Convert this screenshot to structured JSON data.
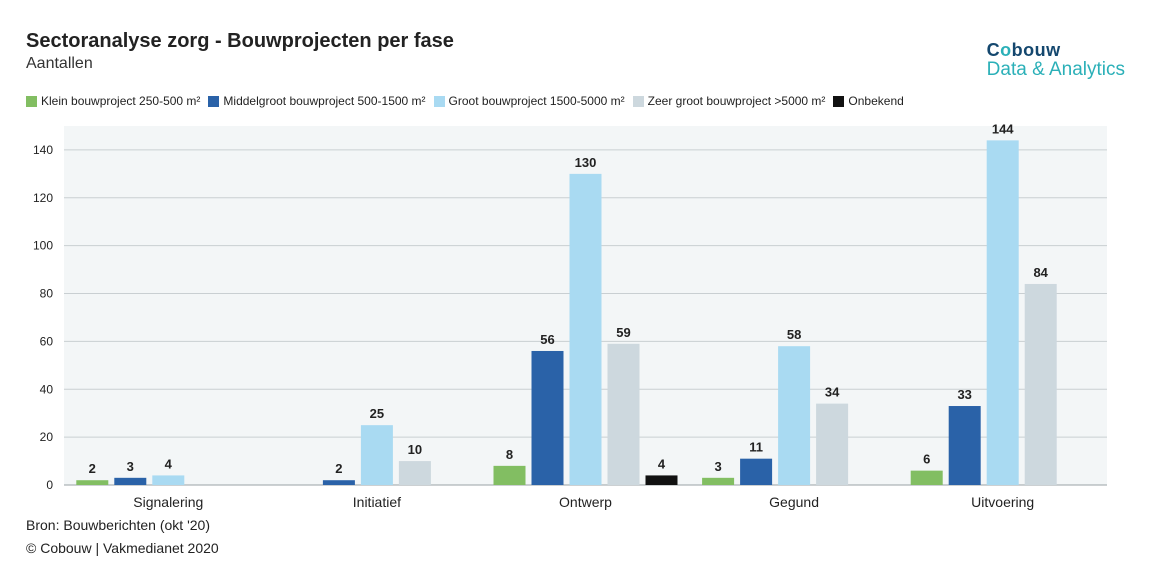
{
  "header": {
    "title": "Sectoranalyse zorg - Bouwprojecten per fase",
    "subtitle": "Aantallen"
  },
  "brand": {
    "name_prefix": "C",
    "name_o": "o",
    "name_suffix": "bouw",
    "tagline": "Data & Analytics"
  },
  "footer": {
    "source": "Bron: Bouwberichten (okt '20)",
    "copyright": "© Cobouw | Vakmedianet 2020"
  },
  "chart_data": {
    "type": "bar",
    "title": "Sectoranalyse zorg - Bouwprojecten per fase",
    "subtitle": "Aantallen",
    "categories": [
      "Signalering",
      "Initiatief",
      "Ontwerp",
      "Gegund",
      "Uitvoering"
    ],
    "series": [
      {
        "name": "Klein bouwproject 250-500 m²",
        "color": "#82be62",
        "values": [
          2,
          null,
          8,
          3,
          6
        ]
      },
      {
        "name": "Middelgroot bouwproject 500-1500 m²",
        "color": "#2a62a8",
        "values": [
          3,
          2,
          56,
          11,
          33
        ]
      },
      {
        "name": "Groot bouwproject 1500-5000 m²",
        "color": "#a9daf2",
        "values": [
          4,
          25,
          130,
          58,
          144
        ]
      },
      {
        "name": "Zeer groot bouwproject >5000 m²",
        "color": "#cdd8de",
        "values": [
          null,
          10,
          59,
          34,
          84
        ]
      },
      {
        "name": "Onbekend",
        "color": "#111111",
        "values": [
          null,
          null,
          4,
          null,
          null
        ]
      }
    ],
    "yticks": [
      0,
      20,
      40,
      60,
      80,
      100,
      120,
      140
    ],
    "ylim": [
      0,
      150
    ],
    "grid": true,
    "legend_position": "top"
  }
}
